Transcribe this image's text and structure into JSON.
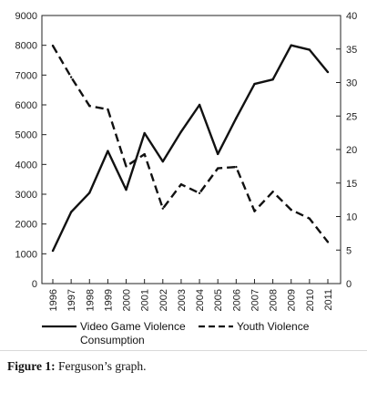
{
  "chart_data": {
    "type": "line",
    "x": [
      1996,
      1997,
      1998,
      1999,
      2000,
      2001,
      2002,
      2003,
      2004,
      2005,
      2006,
      2007,
      2008,
      2009,
      2010,
      2011
    ],
    "x_tick_labels": [
      "1996",
      "1997",
      "1998",
      "1999",
      "2000",
      "2001",
      "2002",
      "2003",
      "2004",
      "2005",
      "2006",
      "2007",
      "2008",
      "2009",
      "2010",
      "2011"
    ],
    "series": [
      {
        "name": "Video Game Violence Consumption",
        "axis": "left",
        "dash": "solid",
        "values": [
          1100,
          2400,
          3050,
          4450,
          3150,
          5050,
          4100,
          5100,
          6000,
          4350,
          5550,
          6700,
          6850,
          8000,
          7850,
          7100
        ]
      },
      {
        "name": "Youth Violence",
        "axis": "right",
        "dash": "dashed",
        "values": [
          35.5,
          30.8,
          26.5,
          26.0,
          17.5,
          19.3,
          11.2,
          14.8,
          13.5,
          17.2,
          17.4,
          10.8,
          13.7,
          11.0,
          9.7,
          6.2
        ]
      }
    ],
    "y_left": {
      "ylim": [
        0,
        9000
      ],
      "ticks": [
        0,
        1000,
        2000,
        3000,
        4000,
        5000,
        6000,
        7000,
        8000,
        9000
      ]
    },
    "y_right": {
      "ylim": [
        0,
        40
      ],
      "ticks": [
        0,
        5,
        10,
        15,
        20,
        25,
        30,
        35,
        40
      ],
      "tick_labels": [
        "0",
        "5",
        "10",
        "15",
        "20",
        "25",
        "30",
        "35",
        "40"
      ]
    },
    "legend_placement": "bottom",
    "grid": false,
    "line_color": "#111111"
  },
  "caption": {
    "label": "Figure 1:",
    "text": " Ferguson’s graph."
  }
}
